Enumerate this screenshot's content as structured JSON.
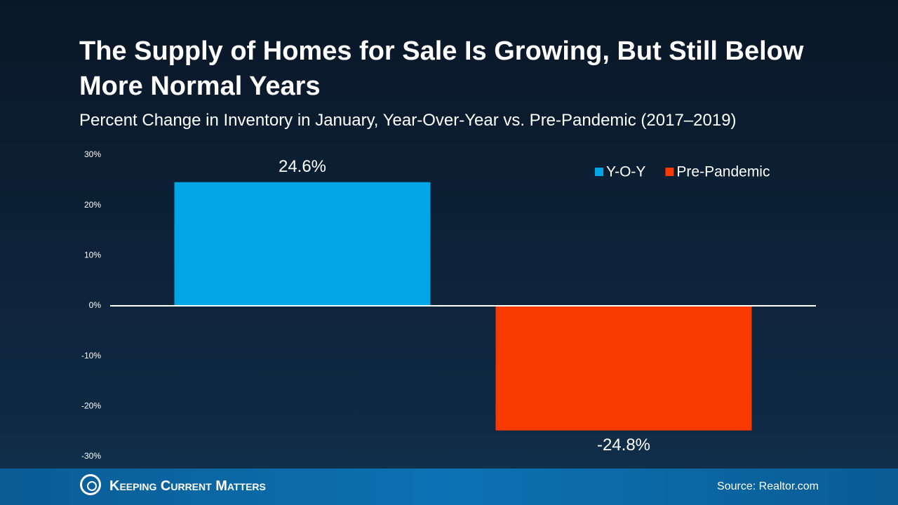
{
  "chart_data": {
    "type": "bar",
    "title": "The Supply of Homes for Sale Is Growing, But Still Below More Normal Years",
    "subtitle": "Percent Change in Inventory in January, Year-Over-Year vs. Pre-Pandemic (2017–2019)",
    "categories": [
      null
    ],
    "series": [
      {
        "name": "Y-O-Y",
        "color": "#00a6e6",
        "values": [
          24.6
        ],
        "value_labels": [
          "24.6%"
        ]
      },
      {
        "name": "Pre-Pandemic",
        "color": "#f83a00",
        "values": [
          -24.8
        ],
        "value_labels": [
          "-24.8%"
        ]
      }
    ],
    "ylim": [
      -30,
      30
    ],
    "yticks": [
      {
        "value": -30,
        "label": "-30%"
      },
      {
        "value": -20,
        "label": "-20%"
      },
      {
        "value": -10,
        "label": "-10%"
      },
      {
        "value": 0,
        "label": "0%"
      },
      {
        "value": 10,
        "label": "10%"
      },
      {
        "value": 20,
        "label": "20%"
      },
      {
        "value": 30,
        "label": "30%"
      }
    ],
    "legend": "top-right",
    "grid": false,
    "source": "Source: Realtor.com",
    "brand": "Keeping Current Matters"
  }
}
